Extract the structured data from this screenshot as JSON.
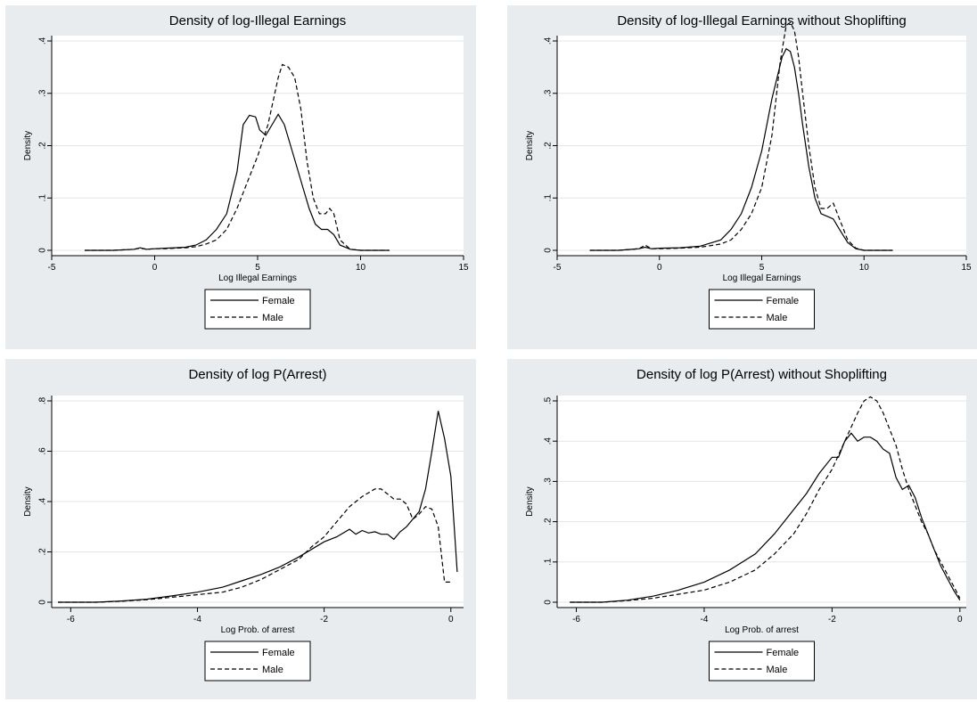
{
  "chart_data": [
    {
      "type": "line",
      "title": "Density of log-Illegal Earnings",
      "xlabel": "Log Illegal Earnings",
      "ylabel": "Density",
      "xlim": [
        -5,
        15
      ],
      "ylim": [
        0,
        0.4
      ],
      "xticks": [
        -5,
        0,
        5,
        10,
        15
      ],
      "yticks": [
        0,
        0.1,
        0.2,
        0.3,
        0.4
      ],
      "yticklabels": [
        "0",
        ".1",
        ".2",
        ".3",
        ".4"
      ],
      "grid": true,
      "legend_position": "bottom-center",
      "series": [
        {
          "name": "Female",
          "style": "solid",
          "x": [
            -3.4,
            -2,
            -1,
            -0.7,
            -0.4,
            0,
            0.5,
            1,
            1.5,
            2,
            2.5,
            3,
            3.5,
            4,
            4.3,
            4.6,
            4.9,
            5.1,
            5.4,
            5.7,
            6.0,
            6.3,
            6.6,
            6.9,
            7.2,
            7.5,
            7.8,
            8.1,
            8.4,
            8.7,
            9.0,
            9.5,
            10,
            11.4
          ],
          "y": [
            0,
            0,
            0.002,
            0.005,
            0.002,
            0.003,
            0.004,
            0.005,
            0.006,
            0.01,
            0.02,
            0.04,
            0.07,
            0.15,
            0.24,
            0.258,
            0.255,
            0.23,
            0.22,
            0.24,
            0.26,
            0.24,
            0.2,
            0.16,
            0.12,
            0.08,
            0.05,
            0.04,
            0.04,
            0.03,
            0.01,
            0.002,
            0,
            0
          ]
        },
        {
          "name": "Male",
          "style": "dashed",
          "x": [
            -3.4,
            -2,
            -1,
            -0.7,
            -0.4,
            0,
            0.5,
            1,
            1.5,
            2,
            2.5,
            3,
            3.5,
            4,
            4.5,
            5,
            5.5,
            6.0,
            6.2,
            6.5,
            6.8,
            7.1,
            7.4,
            7.7,
            8.0,
            8.3,
            8.5,
            8.7,
            9.0,
            9.5,
            10,
            11.4
          ],
          "y": [
            0,
            0,
            0.002,
            0.004,
            0.002,
            0.003,
            0.003,
            0.004,
            0.005,
            0.007,
            0.012,
            0.02,
            0.04,
            0.08,
            0.13,
            0.18,
            0.24,
            0.33,
            0.355,
            0.35,
            0.33,
            0.27,
            0.17,
            0.1,
            0.07,
            0.07,
            0.08,
            0.07,
            0.02,
            0.002,
            0,
            0
          ]
        }
      ]
    },
    {
      "type": "line",
      "title": "Density of log-Illegal Earnings without Shoplifting",
      "xlabel": "Log Illegal Earnings",
      "ylabel": "Density",
      "xlim": [
        -5,
        15
      ],
      "ylim": [
        0,
        0.4
      ],
      "xticks": [
        -5,
        0,
        5,
        10,
        15
      ],
      "yticks": [
        0,
        0.1,
        0.2,
        0.3,
        0.4
      ],
      "yticklabels": [
        "0",
        ".1",
        ".2",
        ".3",
        ".4"
      ],
      "grid": true,
      "legend_position": "bottom-center",
      "series": [
        {
          "name": "Female",
          "style": "solid",
          "x": [
            -3.4,
            -2,
            -1,
            -0.7,
            -0.4,
            0,
            1,
            2,
            3,
            3.5,
            4,
            4.5,
            5,
            5.5,
            6,
            6.2,
            6.4,
            6.6,
            6.8,
            7.0,
            7.3,
            7.6,
            7.9,
            8.2,
            8.5,
            8.8,
            9.2,
            9.6,
            10,
            11.4
          ],
          "y": [
            0,
            0,
            0.003,
            0.006,
            0.003,
            0.004,
            0.005,
            0.008,
            0.02,
            0.04,
            0.07,
            0.12,
            0.19,
            0.29,
            0.37,
            0.385,
            0.38,
            0.35,
            0.3,
            0.24,
            0.16,
            0.1,
            0.07,
            0.065,
            0.06,
            0.04,
            0.015,
            0.003,
            0,
            0
          ]
        },
        {
          "name": "Male",
          "style": "dashed",
          "x": [
            -3.4,
            -2,
            -1,
            -0.7,
            -0.4,
            0,
            1,
            2,
            3,
            3.5,
            4,
            4.5,
            5,
            5.5,
            5.9,
            6.2,
            6.4,
            6.6,
            6.8,
            7.0,
            7.3,
            7.6,
            7.9,
            8.2,
            8.5,
            8.8,
            9.2,
            9.6,
            10,
            11.4
          ],
          "y": [
            0,
            0,
            0.003,
            0.01,
            0.003,
            0.003,
            0.004,
            0.006,
            0.012,
            0.02,
            0.04,
            0.07,
            0.12,
            0.22,
            0.36,
            0.43,
            0.435,
            0.42,
            0.37,
            0.3,
            0.2,
            0.12,
            0.08,
            0.08,
            0.09,
            0.06,
            0.02,
            0.004,
            0,
            0
          ]
        }
      ]
    },
    {
      "type": "line",
      "title": "Density of log P(Arrest)",
      "xlabel": "Log Prob. of arrest",
      "ylabel": "Density",
      "xlim": [
        -6.3,
        0.2
      ],
      "ylim": [
        0,
        0.8
      ],
      "xticks": [
        -6,
        -4,
        -2,
        0
      ],
      "yticks": [
        0,
        0.2,
        0.4,
        0.6,
        0.8
      ],
      "yticklabels": [
        "0",
        ".2",
        ".4",
        ".6",
        ".8"
      ],
      "grid": true,
      "legend_position": "bottom-center",
      "series": [
        {
          "name": "Female",
          "style": "solid",
          "x": [
            -6.2,
            -5.6,
            -5.2,
            -4.8,
            -4.4,
            -4.0,
            -3.6,
            -3.3,
            -3.0,
            -2.7,
            -2.4,
            -2.2,
            -2.0,
            -1.8,
            -1.6,
            -1.5,
            -1.4,
            -1.3,
            -1.2,
            -1.1,
            -1.0,
            -0.9,
            -0.8,
            -0.7,
            -0.6,
            -0.5,
            -0.4,
            -0.3,
            -0.2,
            -0.1,
            0.0,
            0.1
          ],
          "y": [
            0,
            0,
            0.005,
            0.012,
            0.025,
            0.04,
            0.06,
            0.085,
            0.11,
            0.14,
            0.18,
            0.21,
            0.24,
            0.26,
            0.29,
            0.27,
            0.285,
            0.275,
            0.28,
            0.27,
            0.27,
            0.25,
            0.28,
            0.3,
            0.33,
            0.36,
            0.45,
            0.6,
            0.76,
            0.65,
            0.5,
            0.12
          ]
        },
        {
          "name": "Male",
          "style": "dashed",
          "x": [
            -6.2,
            -5.6,
            -5.2,
            -4.8,
            -4.4,
            -4.0,
            -3.6,
            -3.3,
            -3.0,
            -2.7,
            -2.4,
            -2.2,
            -2.0,
            -1.8,
            -1.6,
            -1.4,
            -1.2,
            -1.1,
            -1.0,
            -0.9,
            -0.8,
            -0.7,
            -0.6,
            -0.5,
            -0.4,
            -0.3,
            -0.2,
            -0.1,
            0.0
          ],
          "y": [
            0,
            0,
            0.004,
            0.01,
            0.02,
            0.03,
            0.04,
            0.06,
            0.09,
            0.13,
            0.17,
            0.22,
            0.26,
            0.32,
            0.38,
            0.42,
            0.45,
            0.45,
            0.43,
            0.41,
            0.41,
            0.39,
            0.33,
            0.35,
            0.38,
            0.37,
            0.3,
            0.08,
            0.08
          ]
        }
      ]
    },
    {
      "type": "line",
      "title": "Density of log P(Arrest) without Shoplifting",
      "xlabel": "Log Prob. of arrest",
      "ylabel": "Density",
      "xlim": [
        -6.3,
        0.1
      ],
      "ylim": [
        0,
        0.5
      ],
      "xticks": [
        -6,
        -4,
        -2,
        0
      ],
      "yticks": [
        0,
        0.1,
        0.2,
        0.3,
        0.4,
        0.5
      ],
      "yticklabels": [
        "0",
        ".1",
        ".2",
        ".3",
        ".4",
        ".5"
      ],
      "grid": true,
      "legend_position": "bottom-center",
      "series": [
        {
          "name": "Female",
          "style": "solid",
          "x": [
            -6.1,
            -5.6,
            -5.2,
            -4.8,
            -4.4,
            -4.0,
            -3.6,
            -3.2,
            -2.9,
            -2.6,
            -2.4,
            -2.2,
            -2.0,
            -1.9,
            -1.8,
            -1.7,
            -1.6,
            -1.5,
            -1.4,
            -1.3,
            -1.2,
            -1.1,
            -1.0,
            -0.9,
            -0.8,
            -0.7,
            -0.6,
            -0.5,
            -0.4,
            -0.3,
            -0.2,
            -0.1,
            0.0
          ],
          "y": [
            0,
            0,
            0.005,
            0.015,
            0.03,
            0.05,
            0.08,
            0.12,
            0.17,
            0.23,
            0.27,
            0.32,
            0.36,
            0.36,
            0.4,
            0.42,
            0.4,
            0.41,
            0.41,
            0.4,
            0.38,
            0.37,
            0.31,
            0.28,
            0.29,
            0.26,
            0.21,
            0.17,
            0.13,
            0.09,
            0.06,
            0.03,
            0.005
          ]
        },
        {
          "name": "Male",
          "style": "dashed",
          "x": [
            -6.1,
            -5.6,
            -5.2,
            -4.8,
            -4.4,
            -4.0,
            -3.6,
            -3.2,
            -2.9,
            -2.6,
            -2.4,
            -2.2,
            -2.0,
            -1.8,
            -1.6,
            -1.5,
            -1.4,
            -1.3,
            -1.2,
            -1.1,
            -1.0,
            -0.9,
            -0.8,
            -0.7,
            -0.6,
            -0.5,
            -0.4,
            -0.3,
            -0.2,
            -0.1,
            0.0
          ],
          "y": [
            0,
            0,
            0.004,
            0.01,
            0.02,
            0.03,
            0.05,
            0.08,
            0.12,
            0.17,
            0.22,
            0.28,
            0.33,
            0.4,
            0.47,
            0.5,
            0.51,
            0.5,
            0.47,
            0.43,
            0.39,
            0.33,
            0.28,
            0.24,
            0.2,
            0.17,
            0.13,
            0.1,
            0.07,
            0.04,
            0.01
          ]
        }
      ]
    }
  ]
}
